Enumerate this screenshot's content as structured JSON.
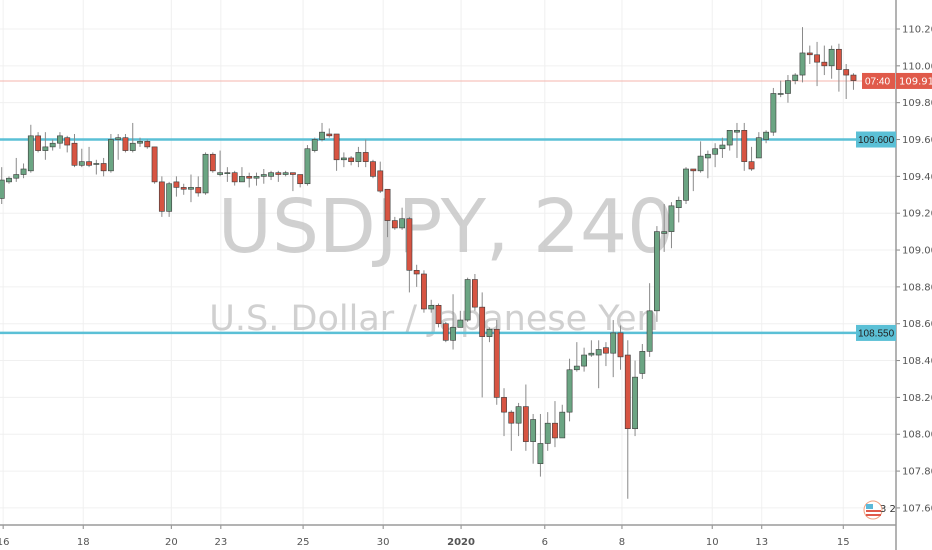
{
  "chart_data": {
    "type": "candlestick",
    "symbol_watermark": "USDJPY, 240",
    "description_watermark": "U.S. Dollar / Japanese Yen",
    "ylim": [
      107.5,
      110.3
    ],
    "y_ticks": [
      "107.600",
      "107.800",
      "108.000",
      "108.200",
      "108.400",
      "108.600",
      "108.800",
      "109.000",
      "109.200",
      "109.400",
      "109.600",
      "109.800",
      "110.000",
      "110.200"
    ],
    "x_ticks": [
      {
        "label": "16",
        "bar": 0.2
      },
      {
        "label": "18",
        "bar": 11.2
      },
      {
        "label": "20",
        "bar": 23.3
      },
      {
        "label": "23",
        "bar": 30.1
      },
      {
        "label": "25",
        "bar": 41.4
      },
      {
        "label": "30",
        "bar": 52.4
      },
      {
        "label": "2020",
        "bar": 63.1
      },
      {
        "label": "6",
        "bar": 74.6
      },
      {
        "label": "8",
        "bar": 85.2
      },
      {
        "label": "10",
        "bar": 97.6
      },
      {
        "label": "13",
        "bar": 104.4
      },
      {
        "label": "15",
        "bar": 115.6
      }
    ],
    "grid": true,
    "horizontal_lines": [
      {
        "price": 109.6,
        "label": "109.600",
        "color": "#5bc0d6"
      },
      {
        "price": 108.55,
        "label": "108.550",
        "color": "#5bc0d6"
      }
    ],
    "last_price": {
      "price": 109.918,
      "label": "109.918",
      "countdown": "07:40",
      "color": "#e05a4a"
    },
    "up_color": "#6ba583",
    "down_color": "#d75442",
    "candles_ohlc": [
      [
        109.28,
        109.45,
        109.25,
        109.38
      ],
      [
        109.37,
        109.4,
        109.36,
        109.39
      ],
      [
        109.39,
        109.5,
        109.37,
        109.41
      ],
      [
        109.41,
        109.47,
        109.39,
        109.44
      ],
      [
        109.43,
        109.68,
        109.42,
        109.62
      ],
      [
        109.62,
        109.64,
        109.53,
        109.54
      ],
      [
        109.54,
        109.64,
        109.49,
        109.56
      ],
      [
        109.56,
        109.6,
        109.54,
        109.58
      ],
      [
        109.58,
        109.64,
        109.55,
        109.62
      ],
      [
        109.61,
        109.62,
        109.53,
        109.57
      ],
      [
        109.58,
        109.63,
        109.45,
        109.46
      ],
      [
        109.46,
        109.55,
        109.45,
        109.48
      ],
      [
        109.48,
        109.56,
        109.45,
        109.46
      ],
      [
        109.47,
        109.49,
        109.41,
        109.47
      ],
      [
        109.47,
        109.5,
        109.4,
        109.43
      ],
      [
        109.43,
        109.63,
        109.42,
        109.6
      ],
      [
        109.6,
        109.63,
        109.49,
        109.61
      ],
      [
        109.61,
        109.63,
        109.53,
        109.54
      ],
      [
        109.54,
        109.69,
        109.53,
        109.58
      ],
      [
        109.58,
        109.61,
        109.56,
        109.59
      ],
      [
        109.59,
        109.6,
        109.55,
        109.56
      ],
      [
        109.56,
        109.56,
        109.36,
        109.37
      ],
      [
        109.37,
        109.4,
        109.18,
        109.21
      ],
      [
        109.21,
        109.37,
        109.18,
        109.36
      ],
      [
        109.37,
        109.4,
        109.29,
        109.34
      ],
      [
        109.34,
        109.36,
        109.3,
        109.33
      ],
      [
        109.33,
        109.41,
        109.26,
        109.34
      ],
      [
        109.34,
        109.4,
        109.29,
        109.31
      ],
      [
        109.31,
        109.53,
        109.3,
        109.52
      ],
      [
        109.52,
        109.53,
        109.42,
        109.43
      ],
      [
        109.41,
        109.54,
        109.4,
        109.42
      ],
      [
        109.42,
        109.45,
        109.37,
        109.42
      ],
      [
        109.42,
        109.43,
        109.35,
        109.37
      ],
      [
        109.37,
        109.45,
        109.37,
        109.4
      ],
      [
        109.4,
        109.42,
        109.34,
        109.39
      ],
      [
        109.39,
        109.42,
        109.35,
        109.4
      ],
      [
        109.4,
        109.44,
        109.36,
        109.41
      ],
      [
        109.4,
        109.43,
        109.38,
        109.42
      ],
      [
        109.42,
        109.43,
        109.37,
        109.41
      ],
      [
        109.41,
        109.43,
        109.4,
        109.42
      ],
      [
        109.42,
        109.42,
        109.32,
        109.41
      ],
      [
        109.41,
        109.41,
        109.34,
        109.36
      ],
      [
        109.36,
        109.57,
        109.35,
        109.55
      ],
      [
        109.54,
        109.61,
        109.53,
        109.6
      ],
      [
        109.6,
        109.69,
        109.59,
        109.64
      ],
      [
        109.63,
        109.66,
        109.61,
        109.62
      ],
      [
        109.63,
        109.63,
        109.43,
        109.49
      ],
      [
        109.49,
        109.53,
        109.45,
        109.5
      ],
      [
        109.5,
        109.51,
        109.46,
        109.48
      ],
      [
        109.48,
        109.56,
        109.45,
        109.53
      ],
      [
        109.53,
        109.6,
        109.45,
        109.48
      ],
      [
        109.48,
        109.49,
        109.39,
        109.4
      ],
      [
        109.43,
        109.48,
        109.31,
        109.32
      ],
      [
        109.33,
        109.33,
        109.07,
        109.16
      ],
      [
        109.16,
        109.18,
        109.11,
        109.12
      ],
      [
        109.12,
        109.23,
        109.11,
        109.17
      ],
      [
        109.17,
        109.18,
        108.77,
        108.89
      ],
      [
        108.89,
        108.92,
        108.8,
        108.87
      ],
      [
        108.87,
        108.89,
        108.66,
        108.68
      ],
      [
        108.68,
        108.73,
        108.66,
        108.7
      ],
      [
        108.7,
        108.71,
        108.58,
        108.6
      ],
      [
        108.6,
        108.61,
        108.5,
        108.51
      ],
      [
        108.51,
        108.76,
        108.46,
        108.58
      ],
      [
        108.58,
        108.67,
        108.58,
        108.62
      ],
      [
        108.62,
        108.85,
        108.61,
        108.84
      ],
      [
        108.84,
        108.87,
        108.67,
        108.69
      ],
      [
        108.69,
        108.77,
        108.2,
        108.53
      ],
      [
        108.53,
        108.58,
        108.5,
        108.57
      ],
      [
        108.57,
        108.62,
        108.16,
        108.2
      ],
      [
        108.2,
        108.25,
        107.99,
        108.12
      ],
      [
        108.12,
        108.13,
        107.91,
        108.06
      ],
      [
        108.06,
        108.17,
        107.99,
        108.15
      ],
      [
        108.15,
        108.27,
        107.91,
        107.96
      ],
      [
        107.96,
        108.11,
        107.84,
        108.08
      ],
      [
        107.84,
        108.11,
        107.77,
        107.95
      ],
      [
        107.95,
        108.12,
        107.91,
        108.06
      ],
      [
        108.06,
        108.18,
        107.93,
        107.98
      ],
      [
        107.98,
        108.16,
        107.98,
        108.12
      ],
      [
        108.12,
        108.41,
        108.07,
        108.35
      ],
      [
        108.35,
        108.5,
        108.34,
        108.37
      ],
      [
        108.37,
        108.47,
        108.34,
        108.43
      ],
      [
        108.43,
        108.51,
        108.42,
        108.44
      ],
      [
        108.43,
        108.51,
        108.25,
        108.46
      ],
      [
        108.47,
        108.5,
        108.37,
        108.44
      ],
      [
        108.44,
        108.62,
        108.31,
        108.55
      ],
      [
        108.55,
        108.59,
        108.35,
        108.42
      ],
      [
        108.43,
        108.51,
        107.65,
        108.03
      ],
      [
        108.03,
        108.4,
        107.99,
        108.31
      ],
      [
        108.33,
        108.49,
        108.3,
        108.45
      ],
      [
        108.45,
        108.82,
        108.42,
        108.67
      ],
      [
        108.67,
        109.13,
        108.61,
        109.1
      ],
      [
        109.09,
        109.25,
        108.99,
        109.1
      ],
      [
        109.1,
        109.26,
        109.01,
        109.24
      ],
      [
        109.23,
        109.29,
        109.15,
        109.27
      ],
      [
        109.27,
        109.45,
        109.25,
        109.44
      ],
      [
        109.44,
        109.44,
        109.32,
        109.43
      ],
      [
        109.43,
        109.59,
        109.42,
        109.51
      ],
      [
        109.5,
        109.54,
        109.39,
        109.52
      ],
      [
        109.52,
        109.58,
        109.45,
        109.55
      ],
      [
        109.55,
        109.61,
        109.5,
        109.57
      ],
      [
        109.57,
        109.65,
        109.54,
        109.65
      ],
      [
        109.64,
        109.69,
        109.5,
        109.65
      ],
      [
        109.65,
        109.69,
        109.43,
        109.48
      ],
      [
        109.48,
        109.56,
        109.43,
        109.44
      ],
      [
        109.5,
        109.64,
        109.5,
        109.61
      ],
      [
        109.6,
        109.65,
        109.58,
        109.64
      ],
      [
        109.64,
        109.88,
        109.62,
        109.85
      ],
      [
        109.85,
        109.92,
        109.83,
        109.85
      ],
      [
        109.85,
        109.95,
        109.8,
        109.92
      ],
      [
        109.92,
        109.96,
        109.9,
        109.95
      ],
      [
        109.95,
        110.21,
        109.91,
        110.07
      ],
      [
        110.07,
        110.11,
        110.01,
        110.06
      ],
      [
        110.06,
        110.13,
        109.89,
        110.02
      ],
      [
        110.02,
        110.11,
        109.95,
        110.0
      ],
      [
        110.0,
        110.11,
        109.93,
        110.09
      ],
      [
        110.09,
        110.12,
        109.86,
        109.98
      ],
      [
        109.98,
        110.01,
        109.82,
        109.95
      ],
      [
        109.95,
        109.96,
        109.87,
        109.92
      ]
    ],
    "event_marker": {
      "icon": "us-flag-icon",
      "text": "3 2"
    }
  }
}
